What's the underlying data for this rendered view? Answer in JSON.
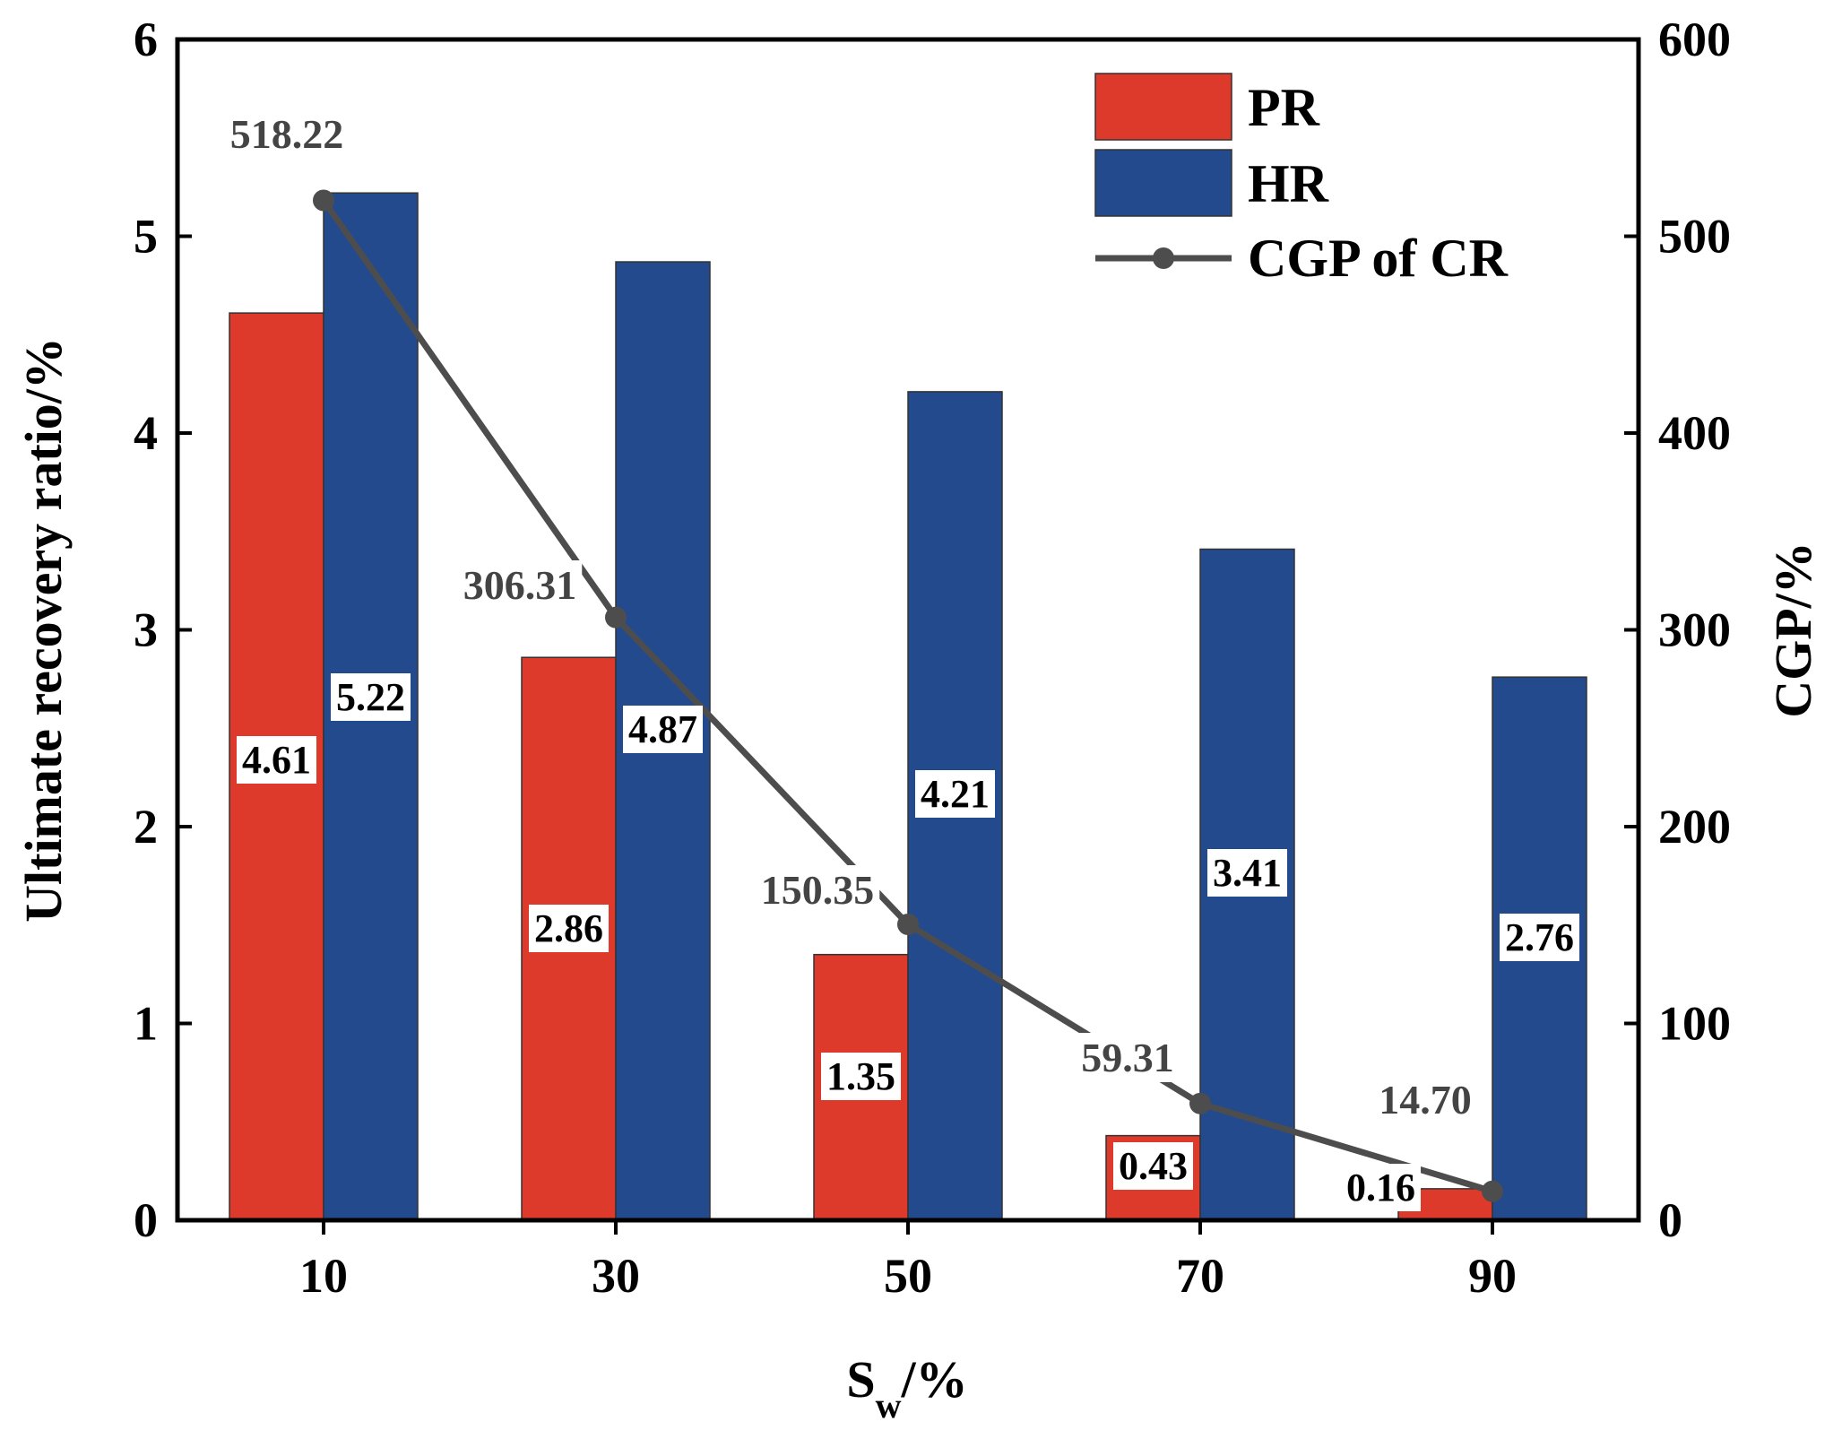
{
  "chart_data": {
    "type": "bar",
    "categories": [
      "10",
      "30",
      "50",
      "70",
      "90"
    ],
    "xlabel_main": "S",
    "xlabel_sub": "w",
    "xlabel_suffix": "/%",
    "ylabel": "Ultimate recovery ratio/%",
    "y2label": "CGP/%",
    "ylim": [
      0,
      6
    ],
    "y2lim": [
      0,
      600
    ],
    "yticks": [
      "0",
      "1",
      "2",
      "3",
      "4",
      "5",
      "6"
    ],
    "y2ticks": [
      "0",
      "100",
      "200",
      "300",
      "400",
      "500",
      "600"
    ],
    "legend_position": "top-right",
    "series": [
      {
        "name": "PR",
        "kind": "bar",
        "color": "#dd3a2c",
        "values": [
          4.61,
          2.86,
          1.35,
          0.43,
          0.16
        ],
        "labels": [
          "4.61",
          "2.86",
          "1.35",
          "0.43",
          "0.16"
        ]
      },
      {
        "name": "HR",
        "kind": "bar",
        "color": "#244a8e",
        "values": [
          5.22,
          4.87,
          4.21,
          3.41,
          2.76
        ],
        "labels": [
          "5.22",
          "4.87",
          "4.21",
          "3.41",
          "2.76"
        ]
      },
      {
        "name": "CGP of CR",
        "kind": "line",
        "axis": "right",
        "color": "#4d4d4d",
        "values": [
          518.22,
          306.31,
          150.35,
          59.31,
          14.7
        ],
        "labels": [
          "518.22",
          "306.31",
          "150.35",
          "59.31",
          "14.70"
        ]
      }
    ]
  }
}
